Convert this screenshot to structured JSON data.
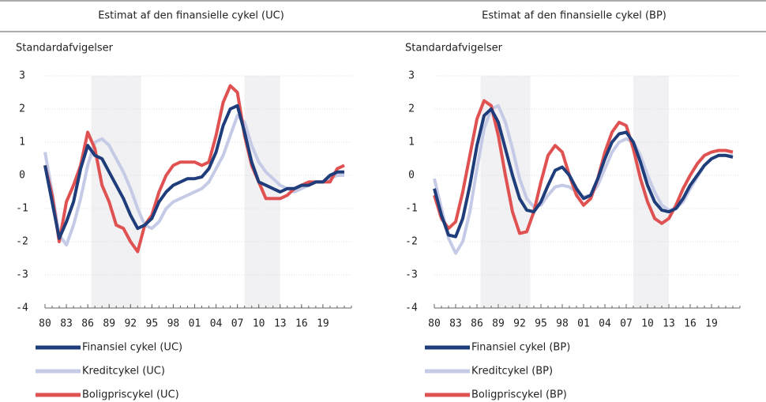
{
  "chart_data": [
    {
      "type": "line",
      "title": "Estimat af den finansielle cykel (UC)",
      "ylabel": "Standardafvigelser",
      "xlim": [
        1980,
        2023
      ],
      "ylim": [
        -4,
        3
      ],
      "yticks": [
        -4,
        -3,
        -2,
        -1,
        0,
        1,
        2,
        3
      ],
      "grid": true,
      "xticks": [
        {
          "value": 1980,
          "label": "80"
        },
        {
          "value": 1983,
          "label": "83"
        },
        {
          "value": 1986,
          "label": "86"
        },
        {
          "value": 1989,
          "label": "89"
        },
        {
          "value": 1992,
          "label": "92"
        },
        {
          "value": 1995,
          "label": "95"
        },
        {
          "value": 1998,
          "label": "98"
        },
        {
          "value": 2001,
          "label": "01"
        },
        {
          "value": 2004,
          "label": "04"
        },
        {
          "value": 2007,
          "label": "07"
        },
        {
          "value": 2010,
          "label": "10"
        },
        {
          "value": 2013,
          "label": "13"
        },
        {
          "value": 2016,
          "label": "16"
        },
        {
          "value": 2019,
          "label": "19"
        }
      ],
      "bands": [
        [
          1986.5,
          1993.5
        ],
        [
          2008,
          2013
        ]
      ],
      "x": [
        1980,
        1981,
        1982,
        1983,
        1984,
        1985,
        1986,
        1987,
        1988,
        1989,
        1990,
        1991,
        1992,
        1993,
        1994,
        1995,
        1996,
        1997,
        1998,
        1999,
        2000,
        2001,
        2002,
        2003,
        2004,
        2005,
        2006,
        2007,
        2008,
        2009,
        2010,
        2011,
        2012,
        2013,
        2014,
        2015,
        2016,
        2017,
        2018,
        2019,
        2020,
        2021,
        2022
      ],
      "series": [
        {
          "name": "Kreditcykel (UC)",
          "color": "#c5cbe6",
          "values": [
            0.7,
            -0.5,
            -1.8,
            -2.1,
            -1.5,
            -0.7,
            0.3,
            1.0,
            1.1,
            0.9,
            0.5,
            0.1,
            -0.4,
            -1.0,
            -1.5,
            -1.6,
            -1.4,
            -1.0,
            -0.8,
            -0.7,
            -0.6,
            -0.5,
            -0.4,
            -0.2,
            0.2,
            0.6,
            1.2,
            1.8,
            1.6,
            0.9,
            0.4,
            0.1,
            -0.1,
            -0.3,
            -0.4,
            -0.5,
            -0.4,
            -0.3,
            -0.2,
            -0.2,
            -0.1,
            0.0,
            0.0
          ]
        },
        {
          "name": "Boligpriscykel (UC)",
          "color": "#e05252",
          "values": [
            0.3,
            -0.6,
            -2.0,
            -0.8,
            -0.3,
            0.3,
            1.3,
            0.8,
            -0.3,
            -0.8,
            -1.5,
            -1.6,
            -2.0,
            -2.3,
            -1.5,
            -1.2,
            -0.5,
            0.0,
            0.3,
            0.4,
            0.4,
            0.4,
            0.3,
            0.4,
            1.2,
            2.2,
            2.7,
            2.5,
            1.2,
            0.3,
            -0.2,
            -0.7,
            -0.7,
            -0.7,
            -0.6,
            -0.4,
            -0.3,
            -0.2,
            -0.2,
            -0.2,
            -0.2,
            0.2,
            0.3
          ]
        },
        {
          "name": "Finansiel cykel (UC)",
          "color": "#1f3d7a",
          "values": [
            0.3,
            -0.8,
            -1.9,
            -1.4,
            -0.8,
            0.2,
            0.9,
            0.6,
            0.5,
            0.1,
            -0.3,
            -0.7,
            -1.2,
            -1.6,
            -1.5,
            -1.3,
            -0.8,
            -0.5,
            -0.3,
            -0.2,
            -0.1,
            -0.1,
            -0.05,
            0.2,
            0.7,
            1.5,
            2.0,
            2.1,
            1.3,
            0.4,
            -0.2,
            -0.3,
            -0.4,
            -0.5,
            -0.4,
            -0.4,
            -0.3,
            -0.3,
            -0.2,
            -0.2,
            0.0,
            0.1,
            0.1
          ]
        }
      ]
    },
    {
      "type": "line",
      "title": "Estimat af den finansielle cykel (BP)",
      "ylabel": "Standardafvigelser",
      "xlim": [
        1980,
        2023
      ],
      "ylim": [
        -4,
        3
      ],
      "yticks": [
        -4,
        -3,
        -2,
        -1,
        0,
        1,
        2,
        3
      ],
      "grid": true,
      "xticks": [
        {
          "value": 1980,
          "label": "80"
        },
        {
          "value": 1983,
          "label": "83"
        },
        {
          "value": 1986,
          "label": "86"
        },
        {
          "value": 1989,
          "label": "89"
        },
        {
          "value": 1992,
          "label": "92"
        },
        {
          "value": 1995,
          "label": "95"
        },
        {
          "value": 1998,
          "label": "98"
        },
        {
          "value": 2001,
          "label": "01"
        },
        {
          "value": 2004,
          "label": "04"
        },
        {
          "value": 2007,
          "label": "07"
        },
        {
          "value": 2010,
          "label": "10"
        },
        {
          "value": 2013,
          "label": "13"
        },
        {
          "value": 2016,
          "label": "16"
        },
        {
          "value": 2019,
          "label": "19"
        }
      ],
      "bands": [
        [
          1986.5,
          1993.5
        ],
        [
          2008,
          2013
        ]
      ],
      "x": [
        1980,
        1981,
        1982,
        1983,
        1984,
        1985,
        1986,
        1987,
        1988,
        1989,
        1990,
        1991,
        1992,
        1993,
        1994,
        1995,
        1996,
        1997,
        1998,
        1999,
        2000,
        2001,
        2002,
        2003,
        2004,
        2005,
        2006,
        2007,
        2008,
        2009,
        2010,
        2011,
        2012,
        2013,
        2014,
        2015,
        2016,
        2017,
        2018,
        2019,
        2020,
        2021,
        2022
      ],
      "series": [
        {
          "name": "Kreditcykel (BP)",
          "color": "#c5cbe6",
          "values": [
            -0.1,
            -1.0,
            -1.9,
            -2.35,
            -2.0,
            -1.1,
            0.2,
            1.4,
            2.0,
            2.1,
            1.6,
            0.8,
            -0.1,
            -0.7,
            -0.95,
            -0.9,
            -0.6,
            -0.35,
            -0.3,
            -0.35,
            -0.5,
            -0.65,
            -0.6,
            -0.3,
            0.2,
            0.7,
            1.0,
            1.1,
            1.0,
            0.6,
            0.0,
            -0.5,
            -0.9,
            -1.05,
            -1.0,
            -0.8,
            -0.4,
            -0.05,
            0.3,
            0.5,
            0.6,
            0.6,
            0.6
          ]
        },
        {
          "name": "Boligpriscykel (BP)",
          "color": "#e05252",
          "values": [
            -0.6,
            -1.3,
            -1.6,
            -1.4,
            -0.5,
            0.6,
            1.7,
            2.25,
            2.1,
            1.2,
            0.0,
            -1.1,
            -1.75,
            -1.7,
            -1.1,
            -0.2,
            0.6,
            0.9,
            0.7,
            0.0,
            -0.6,
            -0.9,
            -0.7,
            -0.1,
            0.7,
            1.3,
            1.6,
            1.5,
            0.8,
            -0.1,
            -0.8,
            -1.3,
            -1.45,
            -1.3,
            -0.9,
            -0.4,
            0.0,
            0.35,
            0.6,
            0.7,
            0.75,
            0.75,
            0.7
          ]
        },
        {
          "name": "Finansiel cykel (BP)",
          "color": "#1f3d7a",
          "values": [
            -0.4,
            -1.2,
            -1.8,
            -1.85,
            -1.3,
            -0.3,
            0.9,
            1.8,
            2.0,
            1.6,
            0.8,
            0.0,
            -0.7,
            -1.05,
            -1.1,
            -0.8,
            -0.3,
            0.15,
            0.25,
            0.0,
            -0.4,
            -0.7,
            -0.6,
            -0.1,
            0.5,
            1.0,
            1.25,
            1.3,
            1.0,
            0.4,
            -0.3,
            -0.8,
            -1.05,
            -1.1,
            -1.0,
            -0.7,
            -0.3,
            0.0,
            0.3,
            0.5,
            0.6,
            0.6,
            0.55
          ]
        }
      ]
    }
  ]
}
